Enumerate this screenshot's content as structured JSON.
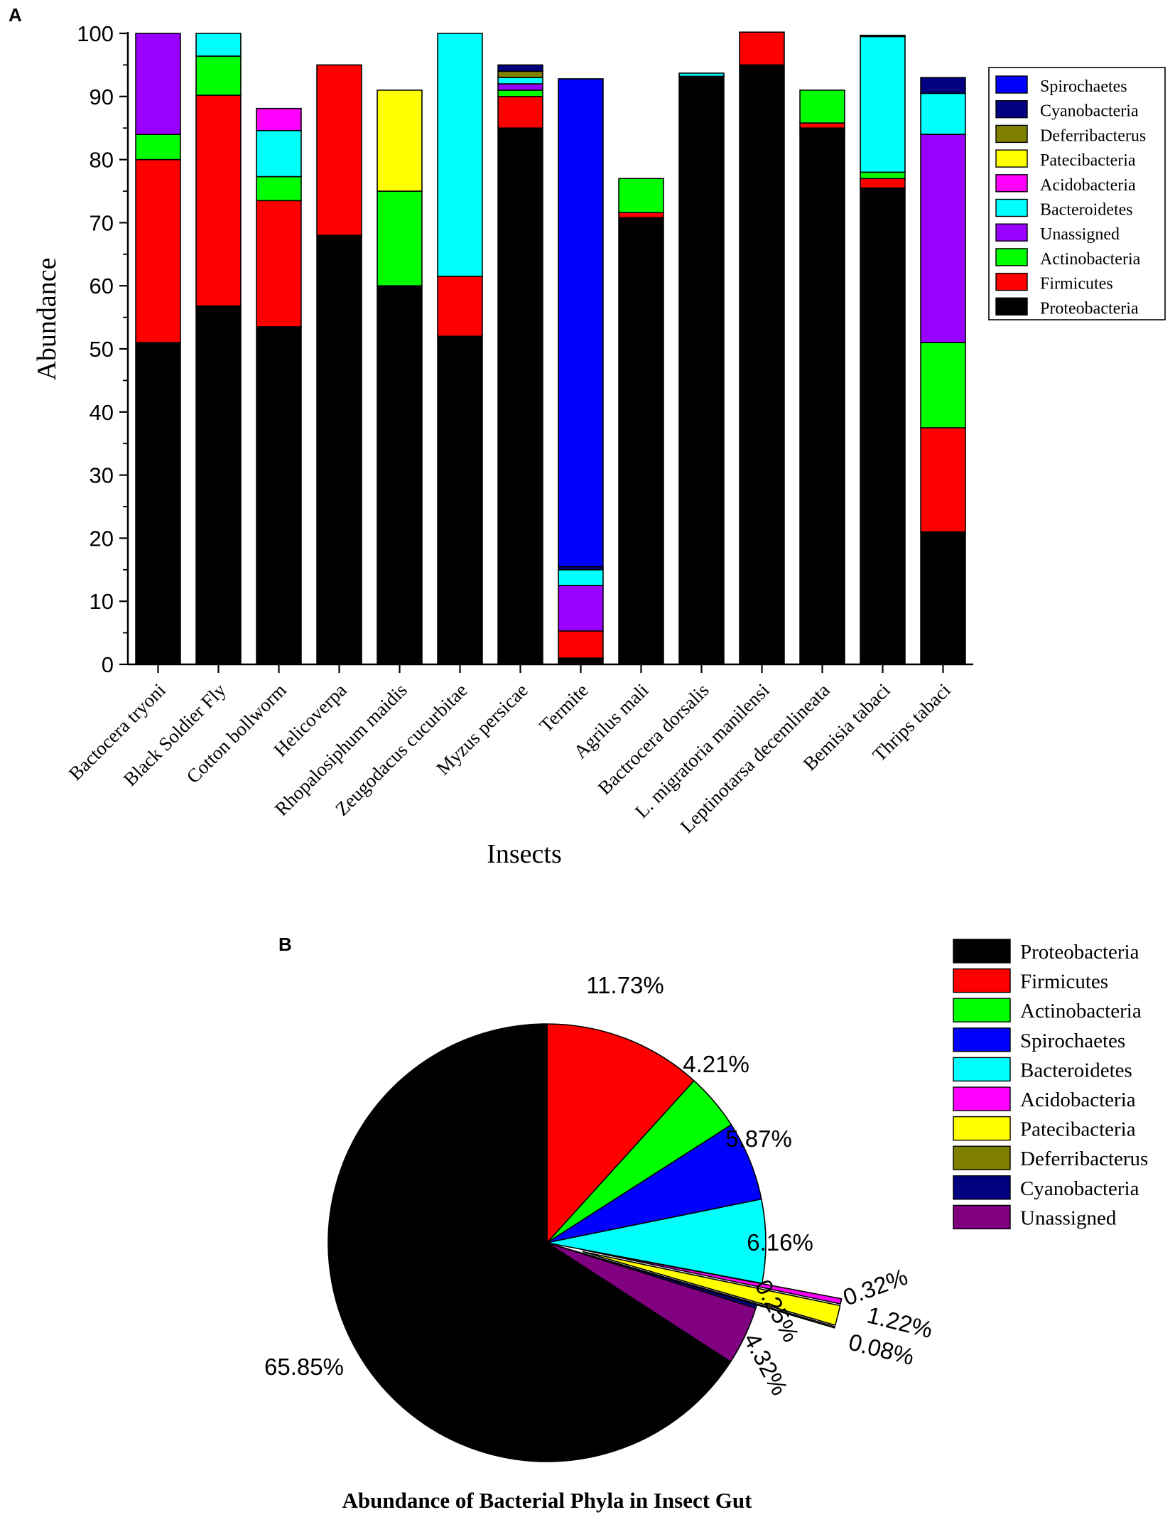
{
  "panel_a": {
    "label": "A",
    "chart_data": {
      "type": "stacked-bar",
      "xlabel": "Insects",
      "ylabel": "Abundance",
      "ylim": [
        0,
        100
      ],
      "yticks": [
        0,
        10,
        20,
        30,
        40,
        50,
        60,
        70,
        80,
        90,
        100
      ],
      "categories": [
        "Bactocera tryoni",
        "Black Soldier Fly",
        "Cotton bollworm",
        "Helicoverpa",
        "Rhopalosiphum maidis",
        "Zeugodacus cucurbitae",
        "Myzus persicae",
        "Termite",
        "Agrilus mali",
        "Bactrocera dorsalis",
        "L. migratoria manilensi",
        "Leptinotarsa decemlineata",
        "Bemisia tabaci",
        "Thrips tabaci"
      ],
      "series": [
        {
          "name": "Proteobacteria",
          "color": "#000000",
          "values": [
            51,
            56.8,
            53.5,
            68,
            60,
            52,
            85,
            1,
            70.8,
            93.2,
            95,
            85,
            75.5,
            21
          ]
        },
        {
          "name": "Firmicutes",
          "color": "#ff0000",
          "values": [
            29,
            33.4,
            20,
            27,
            0,
            9.5,
            5,
            4.3,
            0.8,
            0,
            5.2,
            0.8,
            1.5,
            16.5
          ]
        },
        {
          "name": "Actinobacteria",
          "color": "#00ff00",
          "values": [
            4,
            6.2,
            3.8,
            0,
            15,
            0,
            1,
            0,
            5.4,
            0,
            0,
            5.2,
            1,
            13.5
          ]
        },
        {
          "name": "Unassigned",
          "color": "#9900ff",
          "values": [
            16,
            0,
            0,
            0,
            0,
            0,
            1,
            7.2,
            0,
            0,
            0,
            0,
            0,
            33
          ]
        },
        {
          "name": "Bacteroidetes",
          "color": "#00ffff",
          "values": [
            0,
            3.6,
            7.3,
            0,
            0,
            38.5,
            1,
            2.5,
            0,
            0.5,
            0,
            0,
            21.5,
            6.5
          ]
        },
        {
          "name": "Acidobacteria",
          "color": "#ff00ff",
          "values": [
            0,
            0,
            3.5,
            0,
            0,
            0,
            0,
            0,
            0,
            0,
            0,
            0,
            0,
            0
          ]
        },
        {
          "name": "Patecibacteria",
          "color": "#ffff00",
          "values": [
            0,
            0,
            0,
            0,
            16,
            0,
            0,
            0,
            0,
            0,
            0,
            0,
            0,
            0
          ]
        },
        {
          "name": "Deferribacterus",
          "color": "#808000",
          "values": [
            0,
            0,
            0,
            0,
            0,
            0,
            1,
            0,
            0,
            0,
            0,
            0,
            0,
            0
          ]
        },
        {
          "name": "Cyanobacteria",
          "color": "#000080",
          "values": [
            0,
            0,
            0,
            0,
            0,
            0,
            1,
            0.5,
            0,
            0,
            0,
            0,
            0.2,
            2.5
          ]
        },
        {
          "name": "Spirochaetes",
          "color": "#0000ff",
          "values": [
            0,
            0,
            0,
            0,
            0,
            0,
            0,
            77.3,
            0,
            0,
            0,
            0,
            0,
            0
          ]
        }
      ],
      "legend_order": [
        "Spirochaetes",
        "Cyanobacteria",
        "Deferribacterus",
        "Patecibacteria",
        "Acidobacteria",
        "Bacteroidetes",
        "Unassigned",
        "Actinobacteria",
        "Firmicutes",
        "Proteobacteria"
      ],
      "legend_position": "top-right"
    }
  },
  "panel_b": {
    "label": "B",
    "chart_data": {
      "type": "pie",
      "title": "Abundance of Bacterial Phyla in Insect Gut",
      "slices": [
        {
          "name": "Firmicutes",
          "value": 11.73,
          "label": "11.73%",
          "color": "#ff0000",
          "exploded": false
        },
        {
          "name": "Actinobacteria",
          "value": 4.21,
          "label": "4.21%",
          "color": "#00ff00",
          "exploded": false
        },
        {
          "name": "Spirochaetes",
          "value": 5.87,
          "label": "5.87%",
          "color": "#0000ff",
          "exploded": false
        },
        {
          "name": "Bacteroidetes",
          "value": 6.16,
          "label": "6.16%",
          "color": "#00ffff",
          "exploded": false
        },
        {
          "name": "Acidobacteria",
          "value": 0.32,
          "label": "0.32%",
          "color": "#ff00ff",
          "exploded": true
        },
        {
          "name": "Patecibacteria",
          "value": 1.22,
          "label": "1.22%",
          "color": "#ffff00",
          "exploded": true
        },
        {
          "name": "Deferribacterus",
          "value": 0.08,
          "label": "0.08%",
          "color": "#808000",
          "exploded": true
        },
        {
          "name": "Cyanobacteria",
          "value": 0.25,
          "label": "0.25%",
          "color": "#000080",
          "exploded": false
        },
        {
          "name": "Unassigned",
          "value": 4.32,
          "label": "4.32%",
          "color": "#800080",
          "exploded": false
        },
        {
          "name": "Proteobacteria",
          "value": 65.85,
          "label": "65.85%",
          "color": "#000000",
          "exploded": false
        }
      ],
      "legend_order": [
        "Proteobacteria",
        "Firmicutes",
        "Actinobacteria",
        "Spirochaetes",
        "Bacteroidetes",
        "Acidobacteria",
        "Patecibacteria",
        "Deferribacterus",
        "Cyanobacteria",
        "Unassigned"
      ],
      "legend_position": "right"
    }
  }
}
